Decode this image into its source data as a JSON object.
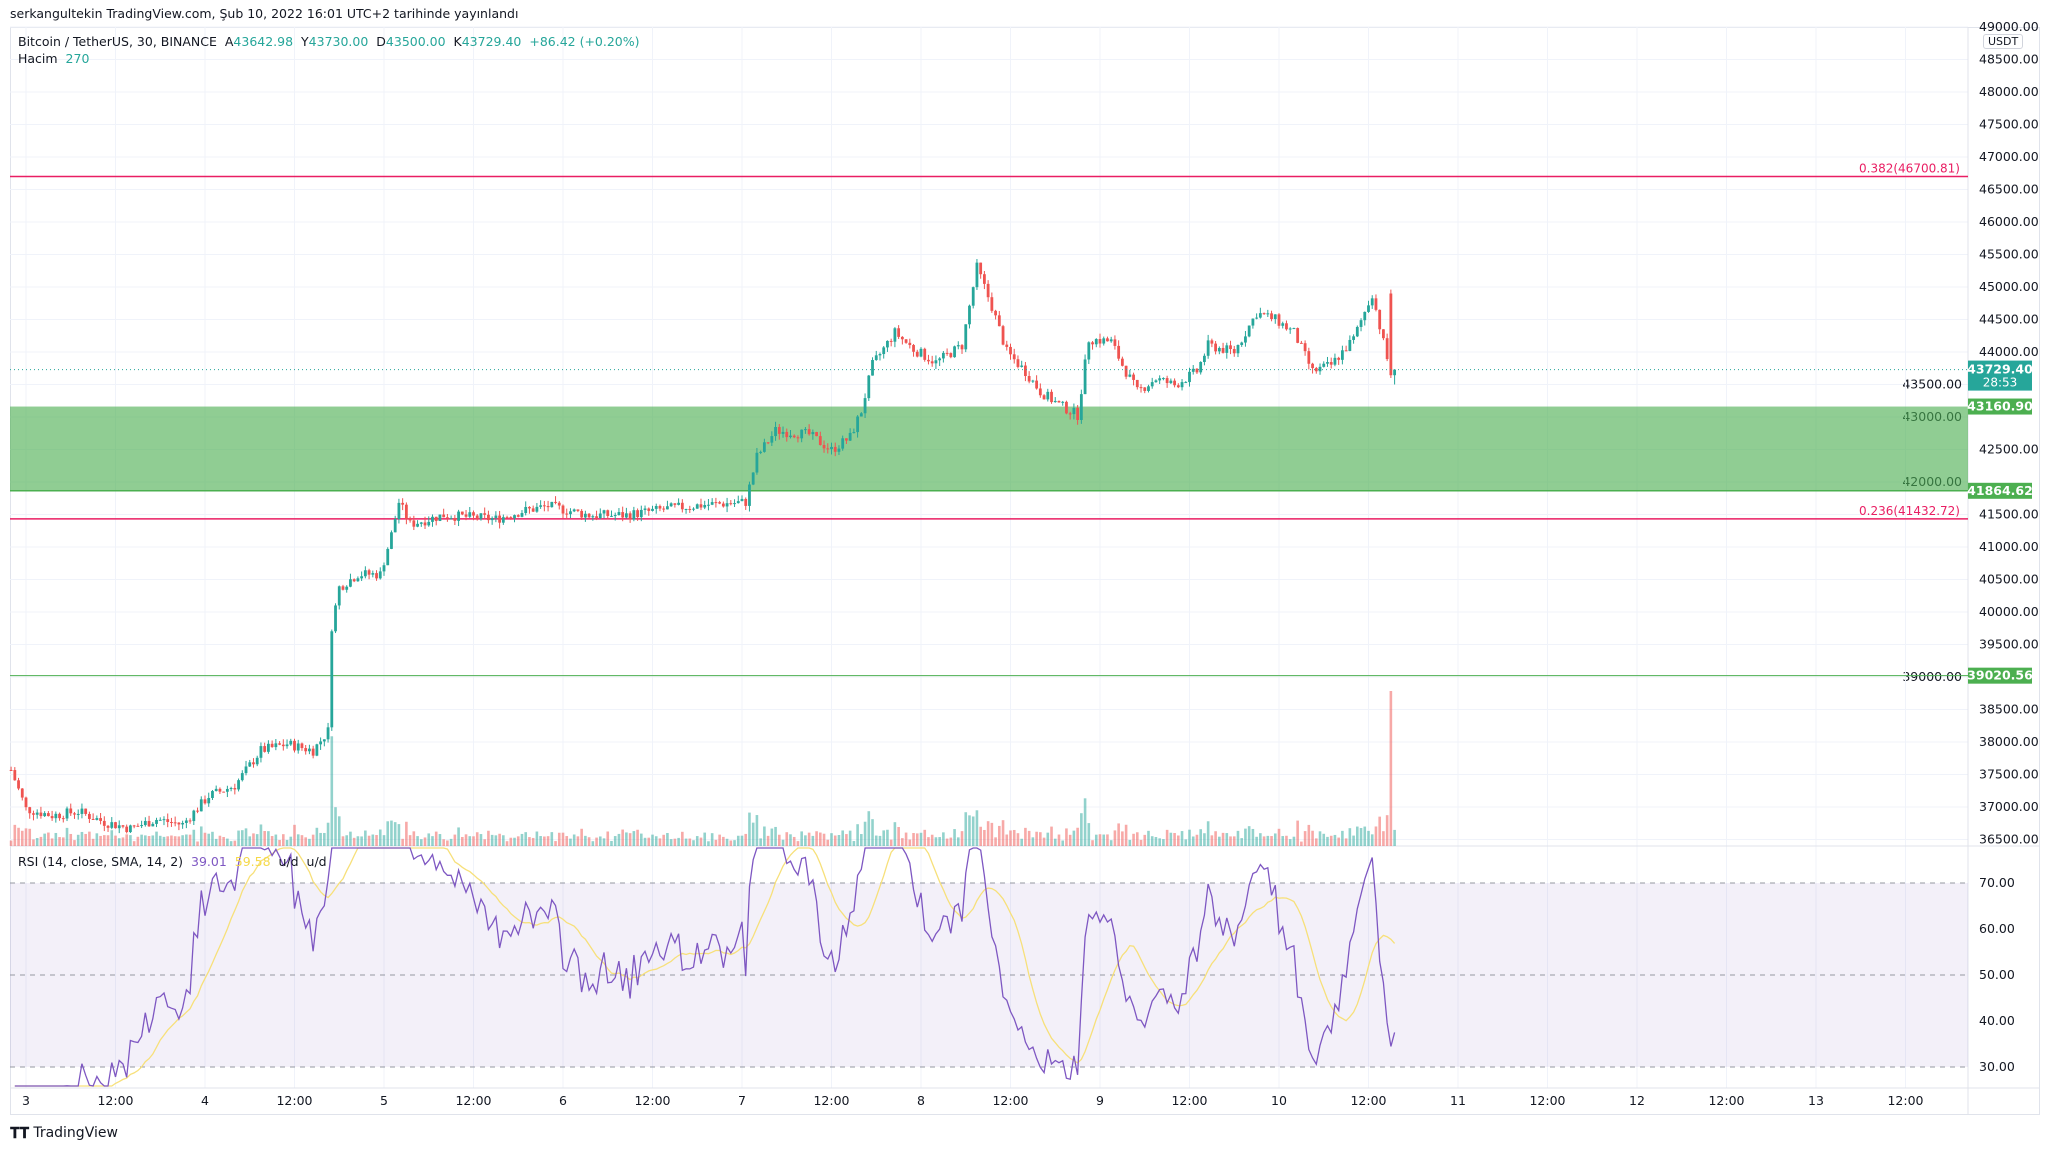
{
  "published": "serkangultekin TradingView.com, Şub 10, 2022 16:01 UTC+2 tarihinde yayınlandı",
  "legend": {
    "symbol": "Bitcoin / TetherUS, 30, BINANCE",
    "open_label": "A",
    "open": "43642.98",
    "high_label": "Y",
    "high": "43730.00",
    "low_label": "D",
    "low": "43500.00",
    "close_label": "K",
    "close": "43729.40",
    "change": "+86.42 (+0.20%)",
    "volume_label": "Hacim",
    "volume": "270"
  },
  "rsi_legend": {
    "title": "RSI (14, close, SMA, 14, 2)",
    "rsi": "39.01",
    "sma": "59.58",
    "ud1": "u/d",
    "ud2": "u/d"
  },
  "currency": "USDT",
  "countdown": "28:53",
  "footer": {
    "brand": "TradingView"
  },
  "colors": {
    "up": "#26a69a",
    "down": "#ef5350",
    "fib": "#e91e63",
    "zone": "#4caf50",
    "rsi": "#7e57c2",
    "rsi_sma": "#f7e07a"
  },
  "chart_data": [
    {
      "type": "candlestick",
      "interval": "30",
      "ylim": [
        36500,
        49000
      ],
      "y_ticks": [
        "49000.00",
        "48500.00",
        "48000.00",
        "47500.00",
        "47000.00",
        "46500.00",
        "46000.00",
        "45500.00",
        "45000.00",
        "44500.00",
        "44000.00",
        "43500.00",
        "43000.00",
        "42500.00",
        "42000.00",
        "41500.00",
        "41000.00",
        "40500.00",
        "40000.00",
        "39500.00",
        "39000.00",
        "38500.00",
        "38000.00",
        "37500.00",
        "37000.00",
        "36500.00"
      ],
      "x_ticks": [
        "3",
        "12:00",
        "4",
        "12:00",
        "5",
        "12:00",
        "6",
        "12:00",
        "7",
        "12:00",
        "8",
        "12:00",
        "9",
        "12:00",
        "10",
        "12:00",
        "11",
        "12:00",
        "12",
        "12:00",
        "13",
        "12:00"
      ],
      "close_path": [
        [
          "2022-02-02T22:00",
          37570
        ],
        [
          "2022-02-03T00:00",
          36970
        ],
        [
          "2022-02-03T03:30",
          36870
        ],
        [
          "2022-02-03T07:00",
          36930
        ],
        [
          "2022-02-03T10:30",
          36770
        ],
        [
          "2022-02-03T14:00",
          36670
        ],
        [
          "2022-02-03T17:30",
          36810
        ],
        [
          "2022-02-03T21:00",
          36730
        ],
        [
          "2022-02-04T00:30",
          37170
        ],
        [
          "2022-02-04T04:00",
          37330
        ],
        [
          "2022-02-04T07:30",
          37870
        ],
        [
          "2022-02-04T11:00",
          37970
        ],
        [
          "2022-02-04T14:30",
          37870
        ],
        [
          "2022-02-04T16:30",
          38170
        ],
        [
          "2022-02-04T17:00",
          39780
        ],
        [
          "2022-02-04T18:00",
          40380
        ],
        [
          "2022-02-04T20:30",
          40580
        ],
        [
          "2022-02-04T23:30",
          40580
        ],
        [
          "2022-02-05T01:00",
          41190
        ],
        [
          "2022-02-05T02:00",
          41690
        ],
        [
          "2022-02-05T03:30",
          41350
        ],
        [
          "2022-02-05T08:00",
          41490
        ],
        [
          "2022-02-05T15:00",
          41430
        ],
        [
          "2022-02-05T18:30",
          41550
        ],
        [
          "2022-02-05T22:00",
          41630
        ],
        [
          "2022-02-06T03:30",
          41490
        ],
        [
          "2022-02-06T08:30",
          41490
        ],
        [
          "2022-02-06T14:00",
          41590
        ],
        [
          "2022-02-06T19:00",
          41650
        ],
        [
          "2022-02-07T00:30",
          41690
        ],
        [
          "2022-02-07T02:00",
          42390
        ],
        [
          "2022-02-07T04:30",
          42790
        ],
        [
          "2022-02-07T09:00",
          42730
        ],
        [
          "2022-02-07T12:00",
          42490
        ],
        [
          "2022-02-07T14:30",
          42690
        ],
        [
          "2022-02-07T16:00",
          43090
        ],
        [
          "2022-02-07T17:30",
          43800
        ],
        [
          "2022-02-07T20:30",
          44300
        ],
        [
          "2022-02-07T23:00",
          44040
        ],
        [
          "2022-02-08T02:00",
          43840
        ],
        [
          "2022-02-08T05:30",
          44100
        ],
        [
          "2022-02-08T07:30",
          45300
        ],
        [
          "2022-02-08T09:30",
          44700
        ],
        [
          "2022-02-08T11:30",
          44000
        ],
        [
          "2022-02-08T14:00",
          43700
        ],
        [
          "2022-02-08T16:00",
          43390
        ],
        [
          "2022-02-08T18:30",
          43190
        ],
        [
          "2022-02-08T21:00",
          43030
        ],
        [
          "2022-02-08T22:30",
          44200
        ],
        [
          "2022-02-09T01:30",
          44160
        ],
        [
          "2022-02-09T03:00",
          43800
        ],
        [
          "2022-02-09T05:00",
          43390
        ],
        [
          "2022-02-09T07:30",
          43590
        ],
        [
          "2022-02-09T10:00",
          43490
        ],
        [
          "2022-02-09T13:00",
          43700
        ],
        [
          "2022-02-09T14:30",
          44100
        ],
        [
          "2022-02-09T18:00",
          44000
        ],
        [
          "2022-02-09T21:00",
          44600
        ],
        [
          "2022-02-09T23:30",
          44500
        ],
        [
          "2022-02-10T02:00",
          44300
        ],
        [
          "2022-02-10T04:30",
          43700
        ],
        [
          "2022-02-10T07:00",
          43800
        ],
        [
          "2022-02-10T10:00",
          44200
        ],
        [
          "2022-02-10T12:30",
          44900
        ],
        [
          "2022-02-10T15:00",
          43642.98
        ],
        [
          "2022-02-10T15:30",
          43729.4
        ]
      ],
      "last_bar": {
        "open": 43642.98,
        "high": 43730.0,
        "low": 43500.0,
        "close": 43729.4,
        "volume": 270
      },
      "levels": [
        {
          "label": "0.382(46700.81)",
          "price": 46700.81,
          "kind": "fib"
        },
        {
          "label": "0.236(41432.72)",
          "price": 41432.72,
          "kind": "fib"
        },
        {
          "label": "39020.56",
          "price": 39020.56,
          "kind": "support"
        }
      ],
      "zone": {
        "top": 43160.9,
        "bottom": 41864.62,
        "top_label": "43160.90",
        "bottom_label": "41864.62"
      },
      "last_price_label": "43729.40"
    },
    {
      "type": "line",
      "title": "RSI (14, close, SMA, 14, 2)",
      "ylim": [
        25,
        78
      ],
      "y_ticks": [
        "70.00",
        "60.00",
        "50.00",
        "40.00",
        "30.00"
      ],
      "bands": [
        70,
        50,
        30
      ],
      "series": [
        {
          "name": "RSI",
          "period": 14
        },
        {
          "name": "SMA",
          "period": 14
        }
      ]
    }
  ]
}
